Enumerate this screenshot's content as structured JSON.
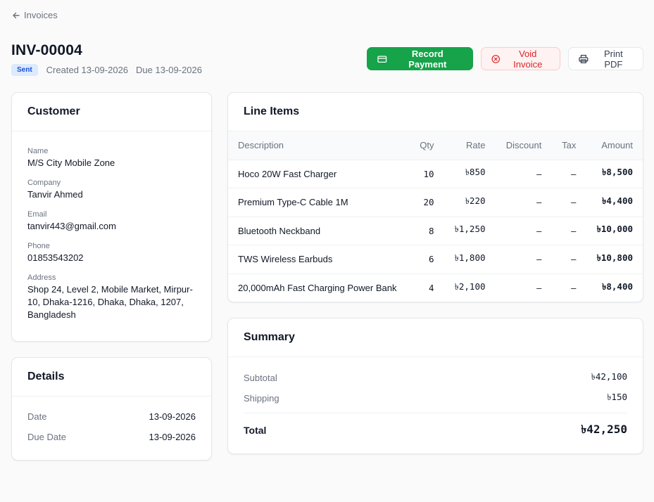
{
  "nav": {
    "back_label": "Invoices"
  },
  "header": {
    "title": "INV-00004",
    "status": "Sent",
    "created": "Created 13-09-2026",
    "due": "Due 13-09-2026"
  },
  "actions": {
    "record_payment": "Record Payment",
    "void_invoice": "Void Invoice",
    "print_pdf": "Print PDF"
  },
  "customer": {
    "title": "Customer",
    "fields": [
      {
        "label": "Name",
        "value": "M/S City Mobile Zone"
      },
      {
        "label": "Company",
        "value": "Tanvir Ahmed"
      },
      {
        "label": "Email",
        "value": "tanvir443@gmail.com"
      },
      {
        "label": "Phone",
        "value": "01853543202"
      },
      {
        "label": "Address",
        "value": "Shop 24, Level 2, Mobile Market, Mirpur-10, Dhaka-1216, Dhaka, Dhaka, 1207, Bangladesh"
      }
    ]
  },
  "details": {
    "title": "Details",
    "rows": [
      {
        "label": "Date",
        "value": "13-09-2026"
      },
      {
        "label": "Due Date",
        "value": "13-09-2026"
      }
    ]
  },
  "line_items": {
    "title": "Line Items",
    "columns": [
      "Description",
      "Qty",
      "Rate",
      "Discount",
      "Tax",
      "Amount"
    ],
    "rows": [
      {
        "description": "Hoco 20W Fast Charger",
        "qty": "10",
        "rate": "৳850",
        "discount": "–",
        "tax": "–",
        "amount": "৳8,500"
      },
      {
        "description": "Premium Type-C Cable 1M",
        "qty": "20",
        "rate": "৳220",
        "discount": "–",
        "tax": "–",
        "amount": "৳4,400"
      },
      {
        "description": "Bluetooth Neckband",
        "qty": "8",
        "rate": "৳1,250",
        "discount": "–",
        "tax": "–",
        "amount": "৳10,000"
      },
      {
        "description": "TWS Wireless Earbuds",
        "qty": "6",
        "rate": "৳1,800",
        "discount": "–",
        "tax": "–",
        "amount": "৳10,800"
      },
      {
        "description": "20,000mAh Fast Charging Power Bank",
        "qty": "4",
        "rate": "৳2,100",
        "discount": "–",
        "tax": "–",
        "amount": "৳8,400"
      }
    ]
  },
  "summary": {
    "title": "Summary",
    "subtotal_label": "Subtotal",
    "subtotal": "৳42,100",
    "shipping_label": "Shipping",
    "shipping": "৳150",
    "total_label": "Total",
    "total": "৳42,250"
  },
  "colors": {
    "primary": "#16a34a",
    "danger": "#dc2626",
    "badge_bg": "#dbeafe",
    "badge_text": "#1d4ed8"
  }
}
